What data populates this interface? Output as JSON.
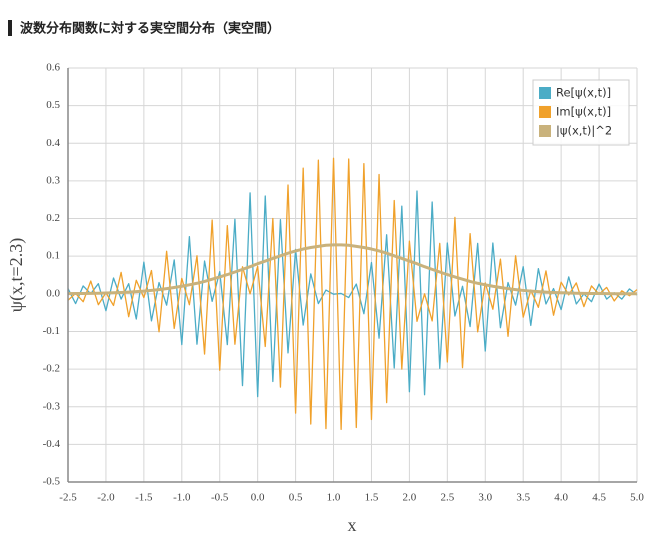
{
  "chart_data": {
    "type": "line",
    "title": "波数分布関数に対する実空間分布（実空間）",
    "x_label": "x",
    "y_label": "ψ(x,t=2.3)",
    "x": [
      -2.5,
      -2.4,
      -2.3,
      -2.2,
      -2.1,
      -2.0,
      -1.9,
      -1.8,
      -1.7,
      -1.6,
      -1.5,
      -1.4,
      -1.3,
      -1.2,
      -1.1,
      -1.0,
      -0.9,
      -0.8,
      -0.7,
      -0.6,
      -0.5,
      -0.4,
      -0.3,
      -0.2,
      -0.1,
      0,
      0.1,
      0.2,
      0.3,
      0.4,
      0.5,
      0.6,
      0.7,
      0.8,
      0.9,
      1.0,
      1.1,
      1.2,
      1.3,
      1.4,
      1.5,
      1.6,
      1.7,
      1.8,
      1.9,
      2.0,
      2.1,
      2.2,
      2.3,
      2.4,
      2.5,
      2.6,
      2.7,
      2.8,
      2.9,
      3.0,
      3.1,
      3.2,
      3.3,
      3.4,
      3.5,
      3.6,
      3.7,
      3.8,
      3.9,
      4.0,
      4.1,
      4.2,
      4.3,
      4.4,
      4.5,
      4.6,
      4.7,
      4.8,
      4.9,
      5.0
    ],
    "series": [
      {
        "name": "Re[ψ(x,t)]",
        "color": "#4bacc6",
        "width": 1.3,
        "values": [
          0.014,
          -0.026,
          0.021,
          0,
          0.027,
          -0.045,
          0.042,
          -0.014,
          0.027,
          -0.067,
          0.084,
          -0.072,
          0.03,
          -0.03,
          0.09,
          -0.135,
          0.152,
          -0.134,
          0.087,
          -0.02,
          0.059,
          -0.135,
          0.198,
          -0.244,
          0.268,
          -0.273,
          0.26,
          -0.233,
          0.197,
          -0.157,
          0.118,
          -0.083,
          0.053,
          -0.026,
          0.01,
          -0.001,
          0.001,
          -0.01,
          0.026,
          -0.053,
          0.083,
          -0.118,
          0.157,
          -0.197,
          0.233,
          -0.26,
          0.273,
          -0.268,
          0.244,
          -0.198,
          0.135,
          -0.059,
          0.02,
          -0.087,
          0.134,
          -0.152,
          0.135,
          -0.09,
          0.03,
          -0.03,
          0.072,
          -0.084,
          0.067,
          -0.027,
          0.014,
          -0.042,
          0.045,
          -0.027,
          0,
          -0.021,
          0.026,
          -0.014,
          0.003,
          -0.014,
          0.013,
          -0.003
        ]
      },
      {
        "name": "Im[ψ(x,t)]",
        "color": "#f0a12b",
        "width": 1.3,
        "values": [
          -0.017,
          0.001,
          -0.021,
          0.034,
          -0.029,
          0.003,
          -0.031,
          0.057,
          -0.061,
          0.036,
          -0.01,
          0.062,
          -0.101,
          0.113,
          -0.092,
          0.041,
          -0.029,
          0.101,
          -0.16,
          0.196,
          -0.203,
          0.181,
          -0.134,
          0.072,
          0,
          0.073,
          -0.14,
          0.2,
          -0.248,
          0.289,
          -0.317,
          0.334,
          -0.346,
          0.355,
          -0.358,
          0.36,
          -0.36,
          0.358,
          -0.355,
          0.346,
          -0.334,
          0.317,
          -0.289,
          0.248,
          -0.2,
          0.14,
          -0.073,
          0,
          -0.072,
          0.134,
          -0.181,
          0.203,
          -0.196,
          0.16,
          -0.101,
          0.029,
          -0.041,
          0.092,
          -0.113,
          0.101,
          -0.062,
          0.01,
          -0.036,
          0.061,
          -0.057,
          0.031,
          -0.003,
          0.029,
          -0.034,
          0.021,
          -0.001,
          0.017,
          -0.019,
          0.008,
          -0.005,
          0.011
        ]
      },
      {
        "name": "|ψ(x,t)|^2",
        "color": "#c9b27c",
        "width": 3,
        "values": [
          0.0005,
          0.0007,
          0.0009,
          0.0012,
          0.0016,
          0.0021,
          0.0027,
          0.0035,
          0.0045,
          0.0057,
          0.0072,
          0.009,
          0.0112,
          0.0137,
          0.0167,
          0.0201,
          0.024,
          0.028,
          0.033,
          0.039,
          0.045,
          0.051,
          0.058,
          0.065,
          0.072,
          0.08,
          0.087,
          0.094,
          0.101,
          0.108,
          0.114,
          0.119,
          0.123,
          0.126,
          0.129,
          0.13,
          0.13,
          0.129,
          0.126,
          0.123,
          0.119,
          0.114,
          0.108,
          0.101,
          0.094,
          0.087,
          0.08,
          0.072,
          0.065,
          0.058,
          0.051,
          0.045,
          0.039,
          0.033,
          0.028,
          0.024,
          0.0201,
          0.0167,
          0.0137,
          0.0112,
          0.009,
          0.0072,
          0.0057,
          0.0045,
          0.0035,
          0.0027,
          0.0021,
          0.0016,
          0.0012,
          0.0009,
          0.0007,
          0.0005,
          0.0003,
          0.0003,
          0.0002,
          0.0001
        ]
      }
    ],
    "xlim": [
      -2.5,
      5.0
    ],
    "xticks": [
      -2.5,
      {
        "value": -2,
        "label": "-2.0"
      },
      -1.5,
      {
        "value": -1,
        "label": "-1.0"
      },
      -0.5,
      {
        "value": 0,
        "label": "0.0"
      },
      0.5,
      {
        "value": 1,
        "label": "1.0"
      },
      1.5,
      {
        "value": 2,
        "label": "2.0"
      },
      2.5,
      {
        "value": 3,
        "label": "3.0"
      },
      3.5,
      {
        "value": 4,
        "label": "4.0"
      },
      4.5,
      {
        "value": 5,
        "label": "5.0"
      }
    ],
    "ylim": [
      -0.5,
      0.6
    ],
    "yticks": [
      -0.5,
      -0.4,
      -0.3,
      -0.2,
      -0.1,
      {
        "value": 0,
        "label": "0.0"
      },
      0.1,
      0.2,
      0.3,
      0.4,
      0.5,
      0.6
    ],
    "grid": true,
    "legend": "top-right"
  }
}
